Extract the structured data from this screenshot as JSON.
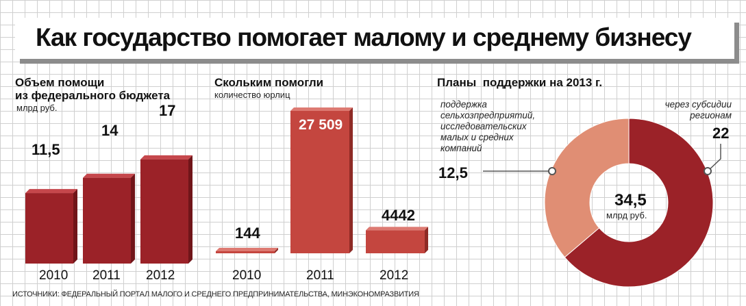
{
  "title": "Как государство помогает малому и среднему бизнесу",
  "source": "ИСТОЧНИКИ: ФЕДЕРАЛЬНЫЙ ПОРТАЛ МАЛОГО И СРЕДНЕГО ПРЕДПРИНИМАТЕЛЬСТВА, МИНЭКОНОМРАЗВИТИЯ",
  "colors": {
    "bar_dark": "#9b2228",
    "bar_dark_top": "#c5474c",
    "bar_dark_side": "#701519",
    "bar_light": "#c4463f",
    "bar_light_top": "#dd7a72",
    "bar_light_side": "#8e2a25",
    "donut_dark": "#9b2228",
    "donut_light": "#e08e74"
  },
  "chart_data": [
    {
      "type": "bar",
      "title": "Объем помощи\nиз федерального бюджета",
      "ylabel": "млрд руб.",
      "categories": [
        "2010",
        "2011",
        "2012"
      ],
      "values": [
        11.5,
        14,
        17
      ],
      "value_labels": [
        "11,5",
        "14",
        "17"
      ]
    },
    {
      "type": "bar",
      "title": "Скольким помогли",
      "ylabel": "количество юрлиц",
      "categories": [
        "2010",
        "2011",
        "2012"
      ],
      "values": [
        144,
        27509,
        4442
      ],
      "value_labels": [
        "144",
        "27 509",
        "4442"
      ]
    },
    {
      "type": "pie",
      "title": "Планы  поддержки на 2013 г.",
      "center_value": "34,5",
      "center_unit": "млрд руб.",
      "slices": [
        {
          "label": "через субсидии\nрегионам",
          "value": 22,
          "value_label": "22"
        },
        {
          "label": "поддержка\nсельхозпредприятий,\nисследовательских\nмалых и средних\nкомпаний",
          "value": 12.5,
          "value_label": "12,5"
        }
      ]
    }
  ]
}
